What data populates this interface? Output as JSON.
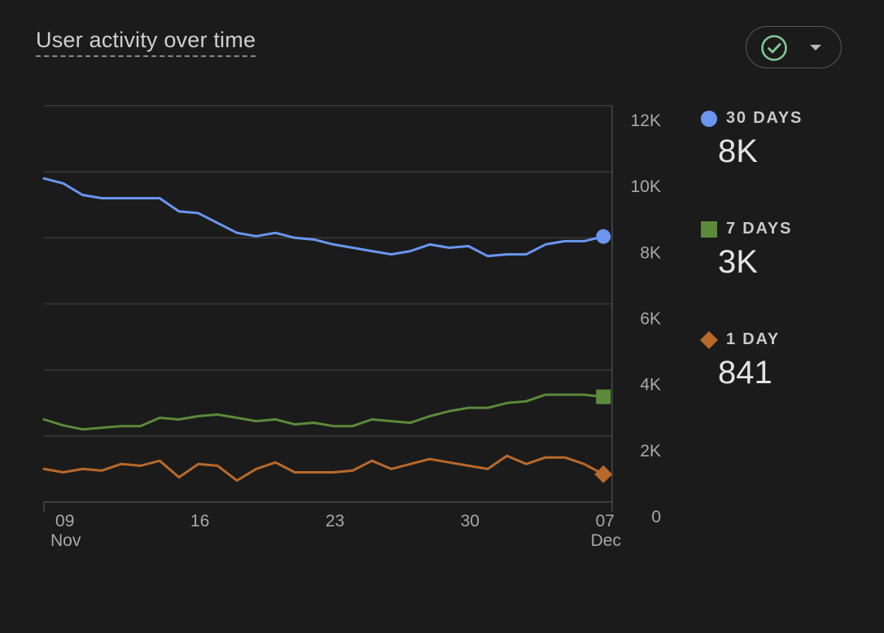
{
  "header": {
    "title": "User activity over time",
    "compare_button_icon": "check-circle-icon",
    "dropdown_icon": "caret-down-icon"
  },
  "legend": [
    {
      "label": "30 DAYS",
      "value": "8K",
      "color": "#6a96f0",
      "marker": "circle"
    },
    {
      "label": "7 DAYS",
      "value": "3K",
      "color": "#5c8a3c",
      "marker": "square"
    },
    {
      "label": "1 DAY",
      "value": "841",
      "color": "#b8692a",
      "marker": "diamond"
    }
  ],
  "chart_data": {
    "type": "line",
    "title": "User activity over time",
    "xlabel": "",
    "ylabel": "",
    "ylim": [
      0,
      12000
    ],
    "y_ticks": [
      {
        "value": 0,
        "label": "0"
      },
      {
        "value": 2000,
        "label": "2K"
      },
      {
        "value": 4000,
        "label": "4K"
      },
      {
        "value": 6000,
        "label": "6K"
      },
      {
        "value": 8000,
        "label": "8K"
      },
      {
        "value": 10000,
        "label": "10K"
      },
      {
        "value": 12000,
        "label": "12K"
      }
    ],
    "x_ticks": [
      {
        "index": 1,
        "day": "09",
        "month": "Nov"
      },
      {
        "index": 8,
        "day": "16",
        "month": ""
      },
      {
        "index": 15,
        "day": "23",
        "month": ""
      },
      {
        "index": 22,
        "day": "30",
        "month": ""
      },
      {
        "index": 29,
        "day": "07",
        "month": "Dec"
      }
    ],
    "x": [
      "Nov 8",
      "Nov 9",
      "Nov 10",
      "Nov 11",
      "Nov 12",
      "Nov 13",
      "Nov 14",
      "Nov 15",
      "Nov 16",
      "Nov 17",
      "Nov 18",
      "Nov 19",
      "Nov 20",
      "Nov 21",
      "Nov 22",
      "Nov 23",
      "Nov 24",
      "Nov 25",
      "Nov 26",
      "Nov 27",
      "Nov 28",
      "Nov 29",
      "Nov 30",
      "Dec 1",
      "Dec 2",
      "Dec 3",
      "Dec 4",
      "Dec 5",
      "Dec 6",
      "Dec 7"
    ],
    "grid": true,
    "y_axis_position": "right",
    "series": [
      {
        "name": "30 DAYS",
        "color": "#6a96f0",
        "marker": "circle",
        "values": [
          9800,
          9650,
          9300,
          9200,
          9200,
          9200,
          9200,
          8800,
          8750,
          8450,
          8150,
          8050,
          8150,
          8000,
          7950,
          7800,
          7700,
          7600,
          7500,
          7600,
          7800,
          7700,
          7750,
          7450,
          7500,
          7500,
          7800,
          7900,
          7900,
          8041
        ]
      },
      {
        "name": "7 DAYS",
        "color": "#5c8a3c",
        "marker": "square",
        "values": [
          2500,
          2320,
          2200,
          2250,
          2300,
          2300,
          2550,
          2500,
          2600,
          2650,
          2550,
          2450,
          2500,
          2350,
          2400,
          2300,
          2300,
          2500,
          2450,
          2400,
          2600,
          2750,
          2850,
          2850,
          3000,
          3050,
          3250,
          3250,
          3250,
          3185
        ]
      },
      {
        "name": "1 DAY",
        "color": "#b8692a",
        "marker": "diamond",
        "values": [
          1000,
          900,
          1000,
          950,
          1150,
          1100,
          1250,
          750,
          1150,
          1100,
          650,
          1000,
          1200,
          900,
          900,
          900,
          950,
          1250,
          1000,
          1150,
          1300,
          1200,
          1100,
          1000,
          1400,
          1150,
          1350,
          1350,
          1150,
          841
        ]
      }
    ]
  }
}
